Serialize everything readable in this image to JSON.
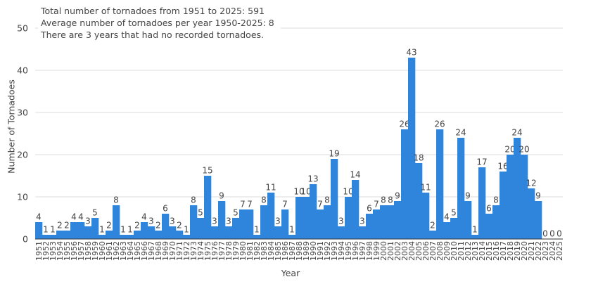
{
  "chart_data": {
    "type": "bar",
    "annotations": [
      "Total number of tornadoes from 1951 to 2025: 591",
      "Average number of tornadoes per year 1950-2025: 8",
      "There are 3 years that had no recorded tornadoes."
    ],
    "xlabel": "Year",
    "ylabel": "Number of Tornadoes",
    "ylim": [
      0,
      50
    ],
    "yticks": [
      0,
      10,
      20,
      30,
      40,
      50
    ],
    "grid": true,
    "bar_color": "#2f84dc",
    "categories": [
      "1951",
      "1952",
      "1953",
      "1954",
      "1955",
      "1956",
      "1957",
      "1958",
      "1959",
      "1960",
      "1961",
      "1962",
      "1963",
      "1964",
      "1965",
      "1966",
      "1967",
      "1968",
      "1969",
      "1970",
      "1971",
      "1972",
      "1973",
      "1974",
      "1975",
      "1976",
      "1977",
      "1978",
      "1979",
      "1980",
      "1981",
      "1982",
      "1983",
      "1984",
      "1985",
      "1986",
      "1987",
      "1988",
      "1989",
      "1990",
      "1991",
      "1992",
      "1993",
      "1994",
      "1995",
      "1996",
      "1997",
      "1998",
      "1999",
      "2000",
      "2001",
      "2002",
      "2003",
      "2004",
      "2005",
      "2006",
      "2007",
      "2008",
      "2009",
      "2010",
      "2011",
      "2012",
      "2013",
      "2014",
      "2015",
      "2016",
      "2017",
      "2018",
      "2019",
      "2020",
      "2021",
      "2022",
      "2023",
      "2024",
      "2025"
    ],
    "values": [
      4,
      1,
      1,
      2,
      2,
      4,
      4,
      3,
      5,
      1,
      2,
      8,
      1,
      1,
      2,
      4,
      3,
      2,
      6,
      3,
      2,
      1,
      8,
      5,
      15,
      3,
      9,
      3,
      5,
      7,
      7,
      1,
      8,
      11,
      3,
      7,
      1,
      10,
      10,
      13,
      7,
      8,
      19,
      3,
      10,
      14,
      3,
      6,
      7,
      8,
      8,
      9,
      26,
      43,
      18,
      11,
      2,
      26,
      4,
      5,
      24,
      9,
      1,
      17,
      6,
      8,
      16,
      20,
      24,
      20,
      12,
      9,
      0,
      0,
      0
    ]
  }
}
